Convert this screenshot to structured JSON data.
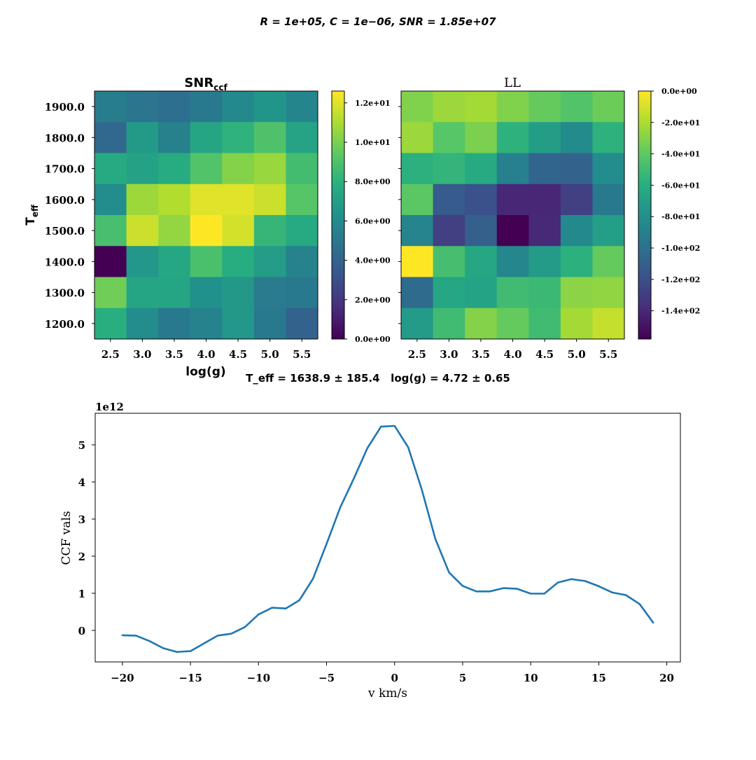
{
  "figure": {
    "suptitle": "R = 1e+05, C = 1e−06, SNR = 1.85e+07",
    "fit_label": "T_eff = 1638.9 ± 185.4   log(g) = 4.72 ± 0.65"
  },
  "chart_data": [
    {
      "type": "heatmap",
      "title": "SNR_ccf",
      "title_main": "SNR",
      "title_sub": "ccf",
      "xlabel": "log(g)",
      "ylabel_main": "T",
      "ylabel_sub": "eff",
      "x_ticks": [
        "2.5",
        "3.0",
        "3.5",
        "4.0",
        "4.5",
        "5.0",
        "5.5"
      ],
      "y_ticks": [
        "1900.0",
        "1800.0",
        "1700.0",
        "1600.0",
        "1500.0",
        "1400.0",
        "1300.0",
        "1200.0"
      ],
      "values": [
        [
          5.3,
          4.9,
          4.6,
          5.1,
          5.9,
          6.5,
          5.7
        ],
        [
          4.3,
          6.8,
          5.5,
          7.4,
          8.1,
          9.0,
          7.3
        ],
        [
          7.6,
          7.2,
          7.7,
          9.1,
          10.2,
          10.6,
          8.7
        ],
        [
          6.1,
          10.7,
          11.1,
          12.0,
          12.0,
          11.6,
          9.2
        ],
        [
          8.8,
          11.6,
          10.5,
          12.6,
          11.8,
          8.3,
          7.6
        ],
        [
          0.0,
          6.6,
          7.5,
          8.9,
          7.8,
          6.9,
          5.6
        ],
        [
          9.8,
          7.4,
          7.4,
          6.3,
          6.7,
          5.2,
          5.1
        ],
        [
          7.9,
          6.1,
          5.1,
          5.6,
          6.6,
          5.1,
          4.0
        ]
      ],
      "vmin": 0,
      "vmax": 12.6,
      "colorbar_ticks": [
        "0.0e+00",
        "2.0e+00",
        "4.0e+00",
        "6.0e+00",
        "8.0e+00",
        "1.0e+01",
        "1.2e+01"
      ],
      "colorbar_values": [
        0,
        2,
        4,
        6,
        8,
        10,
        12
      ],
      "colormap": "viridis"
    },
    {
      "type": "heatmap",
      "title": "LL",
      "x_ticks": [
        "2.5",
        "3.0",
        "3.5",
        "4.0",
        "4.5",
        "5.0",
        "5.5"
      ],
      "values": [
        [
          -31,
          -24,
          -22,
          -31,
          -38,
          -44,
          -36
        ],
        [
          -24,
          -42,
          -32,
          -57,
          -71,
          -83,
          -57
        ],
        [
          -58,
          -55,
          -62,
          -90,
          -107,
          -108,
          -82
        ],
        [
          -41,
          -113,
          -119,
          -141,
          -141,
          -128,
          -94
        ],
        [
          -87,
          -128,
          -110,
          -158,
          -140,
          -84,
          -70
        ],
        [
          0,
          -48,
          -65,
          -86,
          -72,
          -58,
          -38
        ],
        [
          -103,
          -64,
          -67,
          -50,
          -52,
          -28,
          -27
        ],
        [
          -72,
          -50,
          -30,
          -38,
          -50,
          -22,
          -14
        ]
      ],
      "vmin": -158,
      "vmax": 0,
      "colorbar_ticks": [
        "0.0e+00",
        "-2.0e+01",
        "-4.0e+01",
        "-6.0e+01",
        "-8.0e+01",
        "-1.0e+02",
        "-1.2e+02",
        "-1.4e+02"
      ],
      "colorbar_values": [
        0,
        -20,
        -40,
        -60,
        -80,
        -100,
        -120,
        -140
      ],
      "colormap": "viridis"
    },
    {
      "type": "line",
      "xlabel": "v km/s",
      "ylabel": "CCF vals",
      "y_multiplier": "1e12",
      "xlim": [
        -22,
        21
      ],
      "ylim": [
        -0.85,
        5.85
      ],
      "x_ticks": [
        -20,
        -15,
        -10,
        -5,
        0,
        5,
        10,
        15,
        20
      ],
      "x_tick_labels": [
        "−20",
        "−15",
        "−10",
        "−5",
        "0",
        "5",
        "10",
        "15",
        "20"
      ],
      "y_ticks": [
        0,
        1,
        2,
        3,
        4,
        5
      ],
      "y_tick_labels": [
        "0",
        "1",
        "2",
        "3",
        "4",
        "5"
      ],
      "series": [
        {
          "color": "#1f77b4",
          "x": [
            -20,
            -19,
            -18,
            -17,
            -16,
            -15,
            -14,
            -13,
            -12,
            -11,
            -10,
            -9,
            -8,
            -7,
            -6,
            -5,
            -4,
            -3,
            -2,
            -1,
            0,
            1,
            2,
            3,
            4,
            5,
            6,
            7,
            8,
            9,
            10,
            11,
            12,
            13,
            14,
            15,
            16,
            17,
            18,
            19
          ],
          "y": [
            -0.13,
            -0.14,
            -0.29,
            -0.48,
            -0.58,
            -0.56,
            -0.35,
            -0.14,
            -0.09,
            0.09,
            0.43,
            0.61,
            0.59,
            0.81,
            1.39,
            2.33,
            3.31,
            4.09,
            4.91,
            5.49,
            5.51,
            4.93,
            3.79,
            2.46,
            1.56,
            1.2,
            1.05,
            1.05,
            1.14,
            1.12,
            0.99,
            0.99,
            1.29,
            1.38,
            1.33,
            1.19,
            1.02,
            0.95,
            0.71,
            0.21
          ]
        }
      ]
    }
  ]
}
